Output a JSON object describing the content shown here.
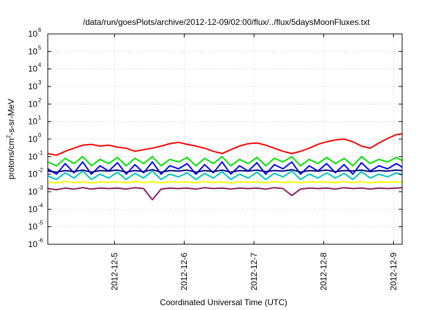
{
  "chart_data": {
    "type": "line",
    "title": "/data/run/goesPlots/archive/2012-12-09/02:00/flux/../flux/5daysMoonFluxes.txt",
    "xlabel": "Coordinated Universal Time (UTC)",
    "ylabel": {
      "pre": "protons/cm",
      "sup": "2",
      "post": "-s-sr-MeV"
    },
    "y_scale": "log",
    "ylim": [
      1e-06,
      1000000.0
    ],
    "y_ticks": [
      {
        "base": "10",
        "exp": "-6"
      },
      {
        "base": "10",
        "exp": "-5"
      },
      {
        "base": "10",
        "exp": "-4"
      },
      {
        "base": "10",
        "exp": "-3"
      },
      {
        "base": "10",
        "exp": "-2"
      },
      {
        "base": "10",
        "exp": "-1"
      },
      {
        "base": "10",
        "exp": "0"
      },
      {
        "base": "10",
        "exp": "1"
      },
      {
        "base": "10",
        "exp": "2"
      },
      {
        "base": "10",
        "exp": "3"
      },
      {
        "base": "10",
        "exp": "4"
      },
      {
        "base": "10",
        "exp": "5"
      },
      {
        "base": "10",
        "exp": "6"
      }
    ],
    "xlim": [
      "2012-12-04 01:00",
      "2012-12-09 03:00"
    ],
    "x_ticks": [
      {
        "label": "2012-12-5",
        "value": "2012-12-05 00:00"
      },
      {
        "label": "2012-12-6",
        "value": "2012-12-06 00:00"
      },
      {
        "label": "2012-12-7",
        "value": "2012-12-07 00:00"
      },
      {
        "label": "2012-12-8",
        "value": "2012-12-08 00:00"
      },
      {
        "label": "2012-12-9",
        "value": "2012-12-09 00:00"
      }
    ],
    "grid": true,
    "series": [
      {
        "color": "#ff0000",
        "x": [
          "2012-12-04 01:00",
          "2012-12-04 04:00",
          "2012-12-04 07:00",
          "2012-12-04 10:00",
          "2012-12-04 13:00",
          "2012-12-04 16:00",
          "2012-12-04 19:00",
          "2012-12-04 22:00",
          "2012-12-05 01:00",
          "2012-12-05 04:00",
          "2012-12-05 07:00",
          "2012-12-05 10:00",
          "2012-12-05 13:00",
          "2012-12-05 16:00",
          "2012-12-05 19:00",
          "2012-12-05 22:00",
          "2012-12-06 01:00",
          "2012-12-06 04:00",
          "2012-12-06 07:00",
          "2012-12-06 10:00",
          "2012-12-06 13:00",
          "2012-12-06 16:00",
          "2012-12-06 19:00",
          "2012-12-06 22:00",
          "2012-12-07 01:00",
          "2012-12-07 04:00",
          "2012-12-07 07:00",
          "2012-12-07 10:00",
          "2012-12-07 13:00",
          "2012-12-07 16:00",
          "2012-12-07 19:00",
          "2012-12-07 22:00",
          "2012-12-08 01:00",
          "2012-12-08 04:00",
          "2012-12-08 07:00",
          "2012-12-08 10:00",
          "2012-12-08 13:00",
          "2012-12-08 16:00",
          "2012-12-08 19:00",
          "2012-12-08 22:00",
          "2012-12-09 01:00",
          "2012-12-09 03:00"
        ],
        "y": [
          0.15,
          0.12,
          0.2,
          0.3,
          0.45,
          0.5,
          0.4,
          0.45,
          0.35,
          0.3,
          0.2,
          0.25,
          0.3,
          0.4,
          0.55,
          0.65,
          0.5,
          0.4,
          0.3,
          0.2,
          0.15,
          0.25,
          0.4,
          0.55,
          0.6,
          0.45,
          0.3,
          0.2,
          0.15,
          0.2,
          0.3,
          0.5,
          0.7,
          0.9,
          1.0,
          0.7,
          0.4,
          0.3,
          0.6,
          1.1,
          1.8,
          2.0
        ]
      },
      {
        "color": "#00e000",
        "x": [
          "2012-12-04 01:00",
          "2012-12-04 04:00",
          "2012-12-04 07:00",
          "2012-12-04 10:00",
          "2012-12-04 13:00",
          "2012-12-04 16:00",
          "2012-12-04 19:00",
          "2012-12-04 22:00",
          "2012-12-05 01:00",
          "2012-12-05 04:00",
          "2012-12-05 07:00",
          "2012-12-05 10:00",
          "2012-12-05 13:00",
          "2012-12-05 16:00",
          "2012-12-05 19:00",
          "2012-12-05 22:00",
          "2012-12-06 01:00",
          "2012-12-06 04:00",
          "2012-12-06 07:00",
          "2012-12-06 10:00",
          "2012-12-06 13:00",
          "2012-12-06 16:00",
          "2012-12-06 19:00",
          "2012-12-06 22:00",
          "2012-12-07 01:00",
          "2012-12-07 04:00",
          "2012-12-07 07:00",
          "2012-12-07 10:00",
          "2012-12-07 13:00",
          "2012-12-07 16:00",
          "2012-12-07 19:00",
          "2012-12-07 22:00",
          "2012-12-08 01:00",
          "2012-12-08 04:00",
          "2012-12-08 07:00",
          "2012-12-08 10:00",
          "2012-12-08 13:00",
          "2012-12-08 16:00",
          "2012-12-08 19:00",
          "2012-12-08 22:00",
          "2012-12-09 01:00",
          "2012-12-09 03:00"
        ],
        "y": [
          0.05,
          0.03,
          0.08,
          0.04,
          0.1,
          0.03,
          0.07,
          0.04,
          0.09,
          0.03,
          0.08,
          0.04,
          0.1,
          0.03,
          0.07,
          0.05,
          0.09,
          0.03,
          0.08,
          0.04,
          0.1,
          0.03,
          0.07,
          0.04,
          0.09,
          0.03,
          0.08,
          0.05,
          0.1,
          0.03,
          0.07,
          0.04,
          0.09,
          0.04,
          0.08,
          0.03,
          0.1,
          0.04,
          0.07,
          0.05,
          0.09,
          0.06
        ]
      },
      {
        "color": "#0000ff",
        "x": [
          "2012-12-04 01:00",
          "2012-12-04 04:00",
          "2012-12-04 07:00",
          "2012-12-04 10:00",
          "2012-12-04 13:00",
          "2012-12-04 16:00",
          "2012-12-04 19:00",
          "2012-12-04 22:00",
          "2012-12-05 01:00",
          "2012-12-05 04:00",
          "2012-12-05 07:00",
          "2012-12-05 10:00",
          "2012-12-05 13:00",
          "2012-12-05 16:00",
          "2012-12-05 19:00",
          "2012-12-05 22:00",
          "2012-12-06 01:00",
          "2012-12-06 04:00",
          "2012-12-06 07:00",
          "2012-12-06 10:00",
          "2012-12-06 13:00",
          "2012-12-06 16:00",
          "2012-12-06 19:00",
          "2012-12-06 22:00",
          "2012-12-07 01:00",
          "2012-12-07 04:00",
          "2012-12-07 07:00",
          "2012-12-07 10:00",
          "2012-12-07 13:00",
          "2012-12-07 16:00",
          "2012-12-07 19:00",
          "2012-12-07 22:00",
          "2012-12-08 01:00",
          "2012-12-08 04:00",
          "2012-12-08 07:00",
          "2012-12-08 10:00",
          "2012-12-08 13:00",
          "2012-12-08 16:00",
          "2012-12-08 19:00",
          "2012-12-08 22:00",
          "2012-12-09 01:00",
          "2012-12-09 03:00"
        ],
        "y": [
          0.02,
          0.01,
          0.04,
          0.012,
          0.05,
          0.01,
          0.03,
          0.015,
          0.045,
          0.01,
          0.035,
          0.012,
          0.05,
          0.01,
          0.03,
          0.02,
          0.04,
          0.01,
          0.035,
          0.012,
          0.05,
          0.01,
          0.03,
          0.015,
          0.045,
          0.01,
          0.035,
          0.02,
          0.05,
          0.01,
          0.03,
          0.015,
          0.04,
          0.012,
          0.035,
          0.01,
          0.045,
          0.015,
          0.03,
          0.02,
          0.04,
          0.025
        ]
      },
      {
        "color": "#00c0c0",
        "x": [
          "2012-12-04 01:00",
          "2012-12-04 04:00",
          "2012-12-04 07:00",
          "2012-12-04 10:00",
          "2012-12-04 13:00",
          "2012-12-04 16:00",
          "2012-12-04 19:00",
          "2012-12-04 22:00",
          "2012-12-05 01:00",
          "2012-12-05 04:00",
          "2012-12-05 07:00",
          "2012-12-05 10:00",
          "2012-12-05 13:00",
          "2012-12-05 16:00",
          "2012-12-05 19:00",
          "2012-12-05 22:00",
          "2012-12-06 01:00",
          "2012-12-06 04:00",
          "2012-12-06 07:00",
          "2012-12-06 10:00",
          "2012-12-06 13:00",
          "2012-12-06 16:00",
          "2012-12-06 19:00",
          "2012-12-06 22:00",
          "2012-12-07 01:00",
          "2012-12-07 04:00",
          "2012-12-07 07:00",
          "2012-12-07 10:00",
          "2012-12-07 13:00",
          "2012-12-07 16:00",
          "2012-12-07 19:00",
          "2012-12-07 22:00",
          "2012-12-08 01:00",
          "2012-12-08 04:00",
          "2012-12-08 07:00",
          "2012-12-08 10:00",
          "2012-12-08 13:00",
          "2012-12-08 16:00",
          "2012-12-08 19:00",
          "2012-12-08 22:00",
          "2012-12-09 01:00",
          "2012-12-09 03:00"
        ],
        "y": [
          0.008,
          0.005,
          0.012,
          0.006,
          0.015,
          0.005,
          0.01,
          0.006,
          0.013,
          0.005,
          0.011,
          0.006,
          0.015,
          0.005,
          0.01,
          0.007,
          0.012,
          0.005,
          0.011,
          0.006,
          0.014,
          0.005,
          0.01,
          0.006,
          0.013,
          0.005,
          0.011,
          0.007,
          0.015,
          0.005,
          0.01,
          0.006,
          0.012,
          0.006,
          0.011,
          0.005,
          0.014,
          0.006,
          0.01,
          0.007,
          0.012,
          0.009
        ]
      },
      {
        "color": "#000080",
        "x": [
          "2012-12-04 01:00",
          "2012-12-04 04:00",
          "2012-12-04 07:00",
          "2012-12-04 10:00",
          "2012-12-04 13:00",
          "2012-12-04 16:00",
          "2012-12-04 19:00",
          "2012-12-04 22:00",
          "2012-12-05 01:00",
          "2012-12-05 04:00",
          "2012-12-05 07:00",
          "2012-12-05 10:00",
          "2012-12-05 13:00",
          "2012-12-05 16:00",
          "2012-12-05 19:00",
          "2012-12-05 22:00",
          "2012-12-06 01:00",
          "2012-12-06 04:00",
          "2012-12-06 07:00",
          "2012-12-06 10:00",
          "2012-12-06 13:00",
          "2012-12-06 16:00",
          "2012-12-06 19:00",
          "2012-12-06 22:00",
          "2012-12-07 01:00",
          "2012-12-07 04:00",
          "2012-12-07 07:00",
          "2012-12-07 10:00",
          "2012-12-07 13:00",
          "2012-12-07 16:00",
          "2012-12-07 19:00",
          "2012-12-07 22:00",
          "2012-12-08 01:00",
          "2012-12-08 04:00",
          "2012-12-08 07:00",
          "2012-12-08 10:00",
          "2012-12-08 13:00",
          "2012-12-08 16:00",
          "2012-12-08 19:00",
          "2012-12-08 22:00",
          "2012-12-09 01:00",
          "2012-12-09 03:00"
        ],
        "y": [
          0.015,
          0.013,
          0.016,
          0.014,
          0.017,
          0.013,
          0.016,
          0.015,
          0.017,
          0.013,
          0.016,
          0.014,
          0.018,
          0.013,
          0.016,
          0.015,
          0.017,
          0.013,
          0.016,
          0.014,
          0.017,
          0.013,
          0.016,
          0.015,
          0.017,
          0.014,
          0.016,
          0.015,
          0.018,
          0.013,
          0.016,
          0.015,
          0.017,
          0.014,
          0.016,
          0.015,
          0.017,
          0.014,
          0.016,
          0.015,
          0.017,
          0.016
        ]
      },
      {
        "color": "#ffff00",
        "x": [
          "2012-12-04 01:00",
          "2012-12-04 04:00",
          "2012-12-04 07:00",
          "2012-12-04 10:00",
          "2012-12-04 13:00",
          "2012-12-04 16:00",
          "2012-12-04 19:00",
          "2012-12-04 22:00",
          "2012-12-05 01:00",
          "2012-12-05 04:00",
          "2012-12-05 07:00",
          "2012-12-05 10:00",
          "2012-12-05 13:00",
          "2012-12-05 16:00",
          "2012-12-05 19:00",
          "2012-12-05 22:00",
          "2012-12-06 01:00",
          "2012-12-06 04:00",
          "2012-12-06 07:00",
          "2012-12-06 10:00",
          "2012-12-06 13:00",
          "2012-12-06 16:00",
          "2012-12-06 19:00",
          "2012-12-06 22:00",
          "2012-12-07 01:00",
          "2012-12-07 04:00",
          "2012-12-07 07:00",
          "2012-12-07 10:00",
          "2012-12-07 13:00",
          "2012-12-07 16:00",
          "2012-12-07 19:00",
          "2012-12-07 22:00",
          "2012-12-08 01:00",
          "2012-12-08 04:00",
          "2012-12-08 07:00",
          "2012-12-08 10:00",
          "2012-12-08 13:00",
          "2012-12-08 16:00",
          "2012-12-08 19:00",
          "2012-12-08 22:00",
          "2012-12-09 01:00",
          "2012-12-09 03:00"
        ],
        "y": [
          0.0035,
          0.0032,
          0.0038,
          0.0033,
          0.0036,
          0.0031,
          0.0037,
          0.0034,
          0.0036,
          0.0032,
          0.0038,
          0.0033,
          0.0036,
          0.0032,
          0.0037,
          0.0034,
          0.0036,
          0.0032,
          0.0038,
          0.0033,
          0.0036,
          0.0031,
          0.0037,
          0.0034,
          0.0036,
          0.0032,
          0.0038,
          0.0033,
          0.0036,
          0.0032,
          0.0037,
          0.0034,
          0.0036,
          0.0032,
          0.0038,
          0.0033,
          0.0036,
          0.0032,
          0.0037,
          0.0034,
          0.0036,
          0.0035
        ]
      },
      {
        "color": "#8b1a5c",
        "x": [
          "2012-12-04 01:00",
          "2012-12-04 04:00",
          "2012-12-04 07:00",
          "2012-12-04 10:00",
          "2012-12-04 13:00",
          "2012-12-04 16:00",
          "2012-12-04 19:00",
          "2012-12-04 22:00",
          "2012-12-05 01:00",
          "2012-12-05 04:00",
          "2012-12-05 07:00",
          "2012-12-05 10:00",
          "2012-12-05 13:00",
          "2012-12-05 16:00",
          "2012-12-05 19:00",
          "2012-12-05 22:00",
          "2012-12-06 01:00",
          "2012-12-06 04:00",
          "2012-12-06 07:00",
          "2012-12-06 10:00",
          "2012-12-06 13:00",
          "2012-12-06 16:00",
          "2012-12-06 19:00",
          "2012-12-06 22:00",
          "2012-12-07 01:00",
          "2012-12-07 04:00",
          "2012-12-07 07:00",
          "2012-12-07 10:00",
          "2012-12-07 13:00",
          "2012-12-07 16:00",
          "2012-12-07 19:00",
          "2012-12-07 22:00",
          "2012-12-08 01:00",
          "2012-12-08 04:00",
          "2012-12-08 07:00",
          "2012-12-08 10:00",
          "2012-12-08 13:00",
          "2012-12-08 16:00",
          "2012-12-08 19:00",
          "2012-12-08 22:00",
          "2012-12-09 01:00",
          "2012-12-09 03:00"
        ],
        "y": [
          0.0015,
          0.0013,
          0.0016,
          0.0014,
          0.0017,
          0.0014,
          0.0016,
          0.0015,
          0.0016,
          0.0014,
          0.0017,
          0.0015,
          0.00035,
          0.0014,
          0.0016,
          0.0015,
          0.0016,
          0.0014,
          0.0017,
          0.0015,
          0.0016,
          0.0014,
          0.0016,
          0.0015,
          0.0016,
          0.0014,
          0.0017,
          0.0015,
          0.0006,
          0.0014,
          0.0016,
          0.0015,
          0.0016,
          0.0014,
          0.0017,
          0.0015,
          0.0016,
          0.0014,
          0.0016,
          0.0015,
          0.0016,
          0.0017
        ]
      }
    ]
  }
}
